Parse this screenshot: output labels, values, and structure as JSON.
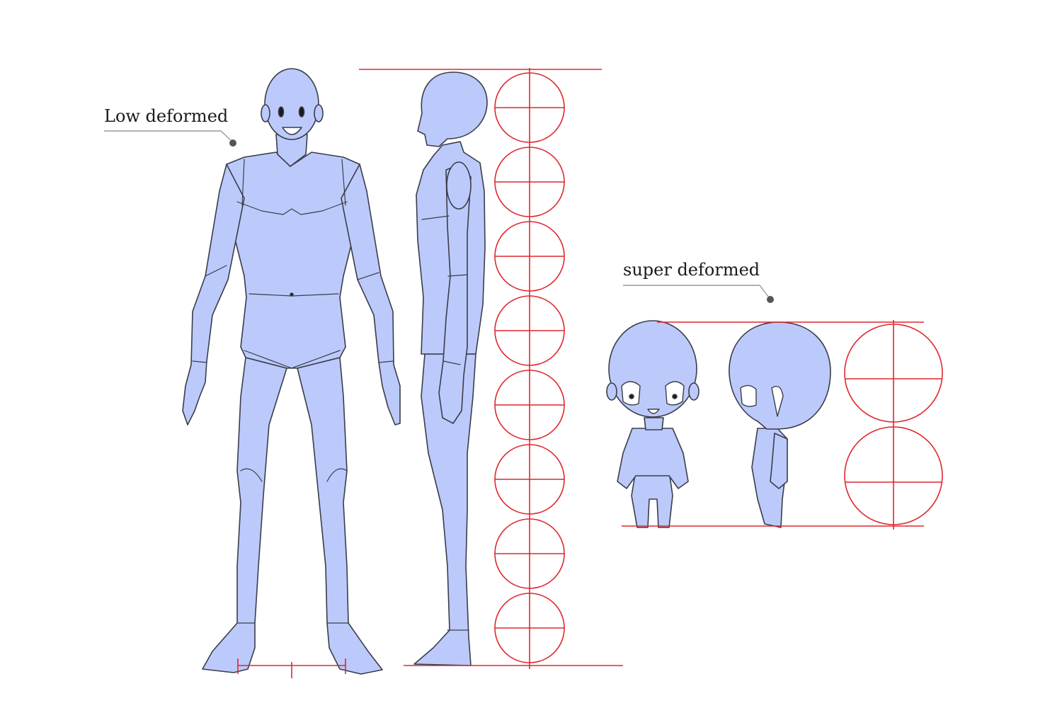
{
  "labels": {
    "low_deformed": "Low deformed",
    "super_deformed": "super deformed"
  },
  "colors": {
    "body_fill": "#bccafb",
    "outline": "#3a3d4a",
    "guide_red": "#e0272e",
    "leader": "#9a9a9a",
    "dot": "#555555"
  },
  "proportions": {
    "low_deformed_heads_tall": 8,
    "super_deformed_heads_tall": 2
  }
}
